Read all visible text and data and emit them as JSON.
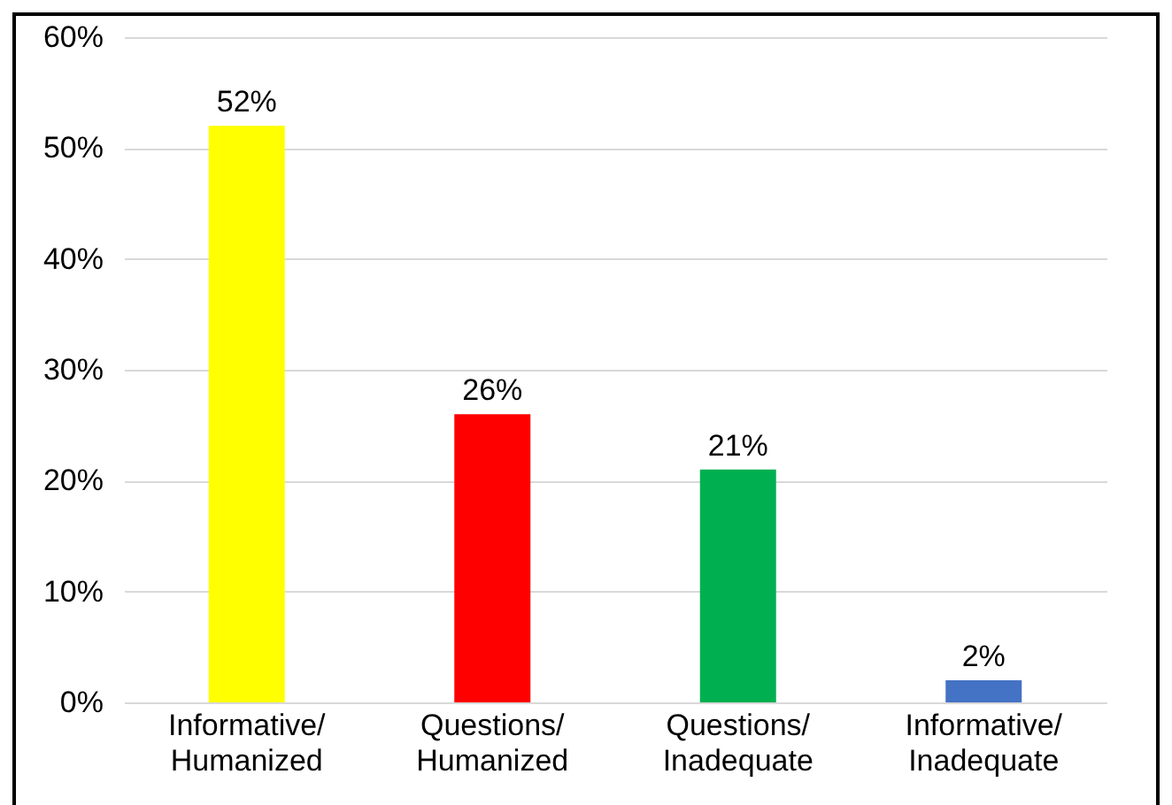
{
  "chart_data": {
    "type": "bar",
    "categories": [
      "Informative/\nHumanized",
      "Questions/\nHumanized",
      "Questions/\nInadequate",
      "Informative/\nInadequate"
    ],
    "values": [
      52,
      26,
      21,
      2
    ],
    "colors": [
      "#ffff00",
      "#ff0000",
      "#00b050",
      "#4472c4"
    ],
    "value_labels": [
      "52%",
      "26%",
      "21%",
      "2%"
    ],
    "ylim": [
      0,
      60
    ],
    "yticks": [
      {
        "value": 0,
        "label": "0%"
      },
      {
        "value": 10,
        "label": "10%"
      },
      {
        "value": 20,
        "label": "20%"
      },
      {
        "value": 30,
        "label": "30%"
      },
      {
        "value": 40,
        "label": "40%"
      },
      {
        "value": 50,
        "label": "50%"
      },
      {
        "value": 60,
        "label": "60%"
      }
    ],
    "grid": "y"
  }
}
